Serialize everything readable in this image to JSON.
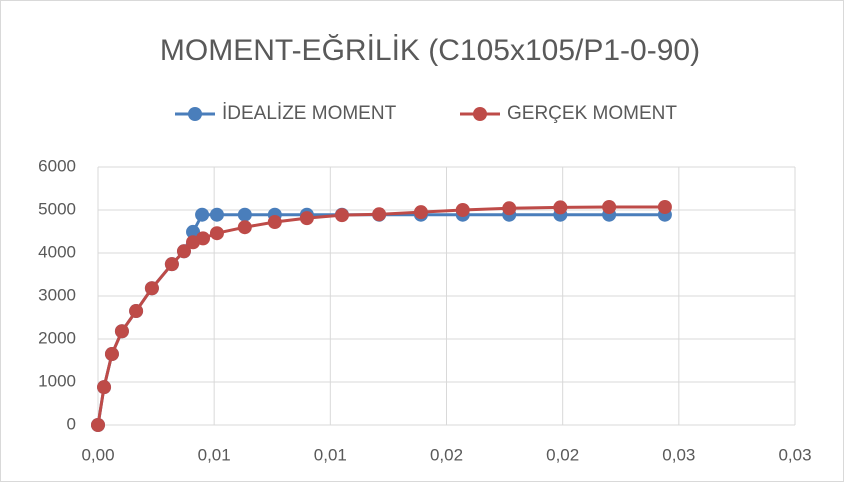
{
  "chart_data": {
    "type": "line",
    "title": "MOMENT-EĞRİLİK (C105x105/P1-0-90)",
    "xlim": [
      0,
      0.03
    ],
    "xticks": [
      {
        "value": 0,
        "label": "0,00"
      },
      {
        "value": 0.005,
        "label": "0,01"
      },
      {
        "value": 0.01,
        "label": "0,01"
      },
      {
        "value": 0.015,
        "label": "0,02"
      },
      {
        "value": 0.02,
        "label": "0,02"
      },
      {
        "value": 0.025,
        "label": "0,03"
      },
      {
        "value": 0.03,
        "label": "0,03"
      }
    ],
    "ylim": [
      0,
      6000
    ],
    "yticks": [
      0,
      1000,
      2000,
      3000,
      4000,
      5000,
      6000
    ],
    "grid": true,
    "legend": "top",
    "series": [
      {
        "name": "İDEALİZE MOMENT",
        "color": "#4a7ebb",
        "x": [
          0,
          0.00026,
          0.0006,
          0.00103,
          0.00164,
          0.00232,
          0.00318,
          0.0037,
          0.00409,
          0.00448,
          0.00512,
          0.00632,
          0.00761,
          0.00899,
          0.0105,
          0.0121,
          0.0139,
          0.0157,
          0.0177,
          0.0199,
          0.022,
          0.0244
        ],
        "values": [
          0,
          880,
          1650,
          2180,
          2650,
          3180,
          3740,
          4040,
          4490,
          4890,
          4890,
          4890,
          4890,
          4890,
          4890,
          4890,
          4890,
          4890,
          4890,
          4890,
          4890,
          4890
        ]
      },
      {
        "name": "GERÇEK MOMENT",
        "color": "#be4b48",
        "x": [
          0,
          0.00026,
          0.0006,
          0.00103,
          0.00164,
          0.00232,
          0.00318,
          0.0037,
          0.00409,
          0.00452,
          0.00512,
          0.00632,
          0.00761,
          0.00899,
          0.0105,
          0.0121,
          0.0139,
          0.0157,
          0.0177,
          0.0199,
          0.022,
          0.0244
        ],
        "values": [
          0,
          880,
          1650,
          2180,
          2650,
          3180,
          3740,
          4040,
          4250,
          4340,
          4460,
          4600,
          4720,
          4810,
          4880,
          4900,
          4950,
          5000,
          5040,
          5060,
          5070,
          5070
        ]
      }
    ]
  }
}
